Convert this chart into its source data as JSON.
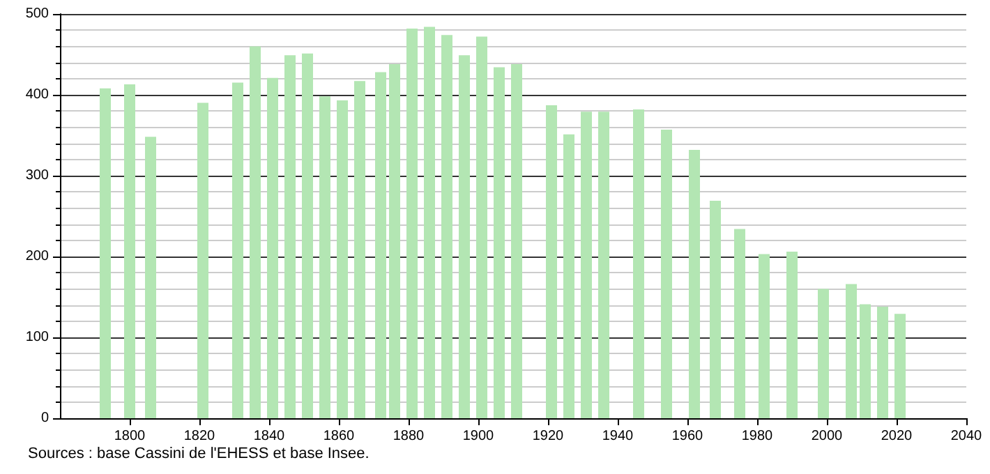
{
  "chart_data": {
    "type": "bar",
    "x": [
      1793,
      1800,
      1806,
      1821,
      1831,
      1836,
      1841,
      1846,
      1851,
      1856,
      1861,
      1866,
      1872,
      1876,
      1881,
      1886,
      1891,
      1896,
      1901,
      1906,
      1911,
      1921,
      1926,
      1931,
      1936,
      1946,
      1954,
      1962,
      1968,
      1975,
      1982,
      1990,
      1999,
      2007,
      2011,
      2016,
      2021
    ],
    "values": [
      408,
      413,
      348,
      390,
      415,
      460,
      421,
      449,
      451,
      398,
      393,
      417,
      428,
      438,
      482,
      484,
      474,
      449,
      472,
      434,
      438,
      387,
      351,
      379,
      379,
      382,
      357,
      332,
      269,
      234,
      203,
      206,
      160,
      166,
      141,
      138,
      129
    ],
    "color": "#b3e6b3",
    "xlim": [
      1780,
      2040
    ],
    "xticks": [
      1800,
      1820,
      1840,
      1860,
      1880,
      1900,
      1920,
      1940,
      1960,
      1980,
      2000,
      2020,
      2040
    ],
    "ylim": [
      0,
      500
    ],
    "yticks": [
      0,
      100,
      200,
      300,
      400,
      500
    ],
    "grid": "y",
    "annotations": [
      "Sources : base Cassini de l'EHESS et base Insee."
    ]
  }
}
